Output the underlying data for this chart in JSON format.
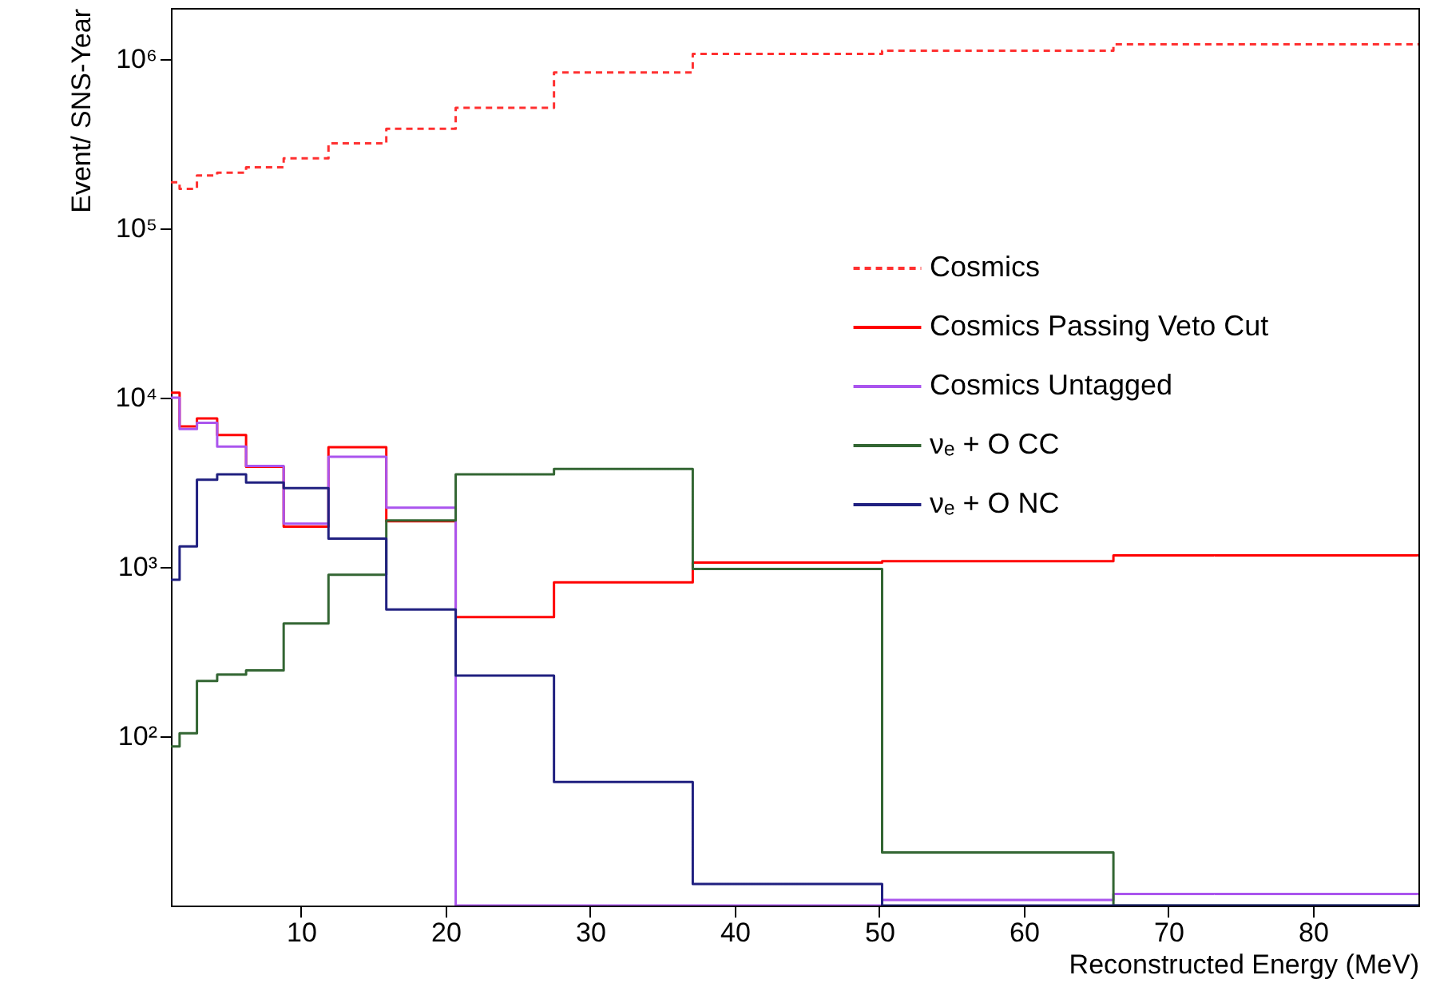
{
  "chart_data": {
    "type": "histogram",
    "xlabel": "Reconstructed Energy (MeV)",
    "ylabel": "Event/ SNS-Year",
    "bins": [
      1,
      1.6,
      2.8,
      4.2,
      6.2,
      8.8,
      11.9,
      15.9,
      20.7,
      27.5,
      37.1,
      50.2,
      66.2,
      87.3
    ],
    "series": [
      {
        "name": "Cosmics",
        "color": "#ff3030",
        "line_style": "dashed",
        "values": [
          187000,
          171000,
          205000,
          213000,
          229000,
          259000,
          317000,
          387000,
          515000,
          833000,
          1070000,
          1120000,
          1220000
        ]
      },
      {
        "name": "Cosmics Passing Veto Cut",
        "color": "#ff0000",
        "values": [
          10700,
          6760,
          7540,
          6020,
          3900,
          1730,
          5100,
          1860,
          506,
          811,
          1060,
          1080,
          1170
        ]
      },
      {
        "name": "Cosmics Untagged",
        "color": "#aa55ee",
        "values": [
          10000,
          6530,
          7100,
          5130,
          3950,
          1800,
          4470,
          2240,
          null,
          null,
          10,
          10.8,
          11.7
        ]
      },
      {
        "name": "νₑ + O CC",
        "color": "#336633",
        "values": [
          87,
          104,
          212,
          231,
          245,
          463,
          900,
          1880,
          3520,
          3790,
          973,
          20.6,
          null
        ]
      },
      {
        "name": "νₑ + O NC",
        "color": "#202080",
        "values": [
          841,
          1320,
          3270,
          3520,
          3150,
          2920,
          1470,
          561,
          228,
          53.7,
          13.4,
          null,
          null
        ]
      }
    ],
    "xlim": [
      1,
      87.3
    ],
    "xticks": [
      10,
      20,
      30,
      40,
      50,
      60,
      70,
      80
    ],
    "ylim": [
      10,
      2000000
    ],
    "yticks": [
      {
        "value": 100,
        "label": "10²"
      },
      {
        "value": 1000,
        "label": "10³"
      },
      {
        "value": 10000,
        "label": "10⁴"
      },
      {
        "value": 100000,
        "label": "10⁵"
      },
      {
        "value": 1000000,
        "label": "10⁶"
      }
    ],
    "log": "y",
    "legend": "top right"
  }
}
